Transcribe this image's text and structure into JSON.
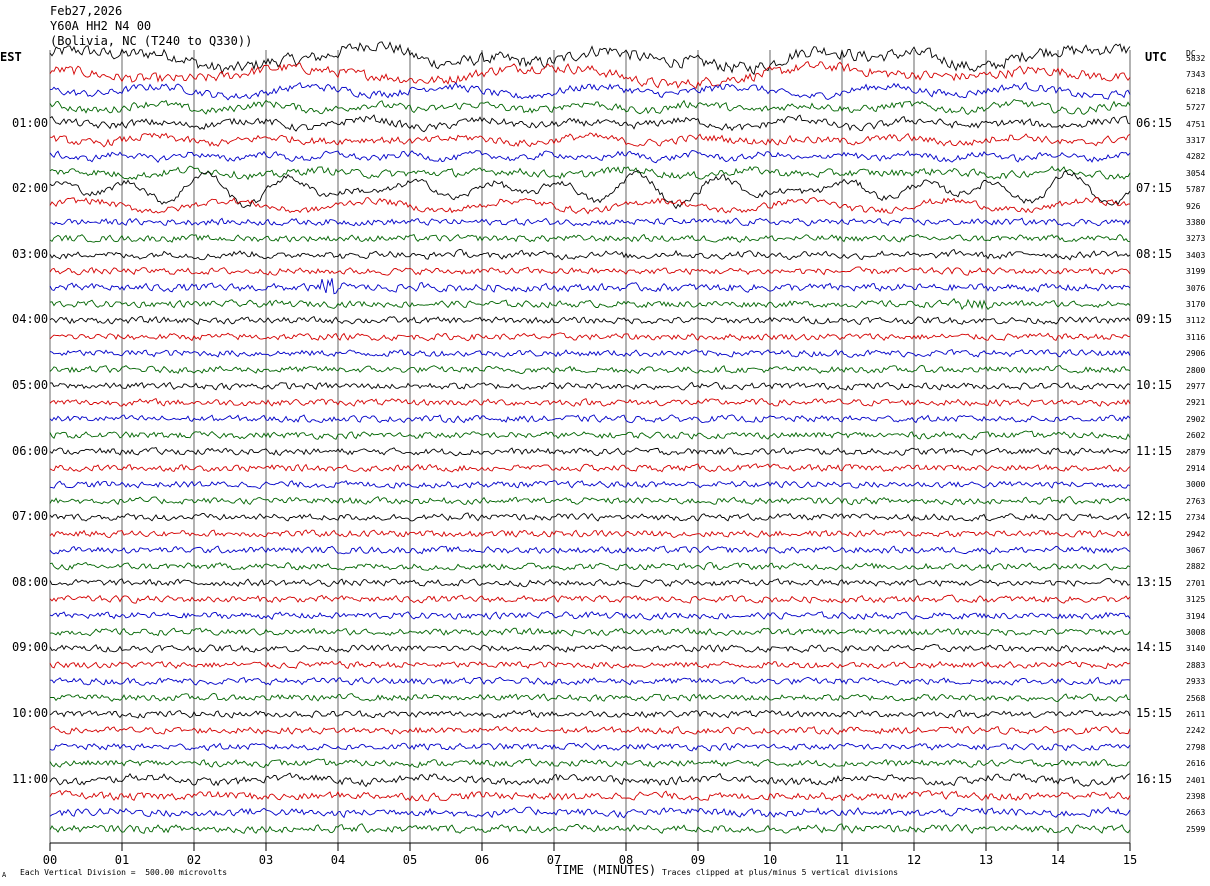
{
  "header": {
    "date": "Feb27,2026",
    "station": "Y60A HH2 N4 00",
    "location": "(Bolivia, NC (T240 to Q330))"
  },
  "axes": {
    "left_title": "EST",
    "right_title": "UTC",
    "dc_title": "DC",
    "xlabel": "TIME (MINUTES)"
  },
  "footer": {
    "scale": "Each Vertical Division =  500.00 microvolts",
    "clip": "Traces clipped at plus/minus 5 vertical divisions",
    "mark": "A"
  },
  "colors": {
    "cycle": [
      "#000000",
      "#d40000",
      "#0000c8",
      "#006400"
    ],
    "grid": "#000000"
  },
  "chart_data": {
    "type": "line",
    "x_ticks": [
      "00",
      "01",
      "02",
      "03",
      "04",
      "05",
      "06",
      "07",
      "08",
      "09",
      "10",
      "11",
      "12",
      "13",
      "14",
      "15"
    ],
    "xlim": [
      0,
      15
    ],
    "row_minutes": 15,
    "rows": 48,
    "left_time_labels": [
      "01:00",
      "02:00",
      "03:00",
      "04:00",
      "05:00",
      "06:00",
      "07:00",
      "08:00",
      "09:00",
      "10:00",
      "11:00"
    ],
    "right_time_labels": [
      "06:15",
      "07:15",
      "08:15",
      "09:15",
      "10:15",
      "11:15",
      "12:15",
      "13:15",
      "14:15",
      "15:15",
      "16:15"
    ],
    "label_every_rows": 4,
    "dc_offsets": [
      "5832",
      "7343",
      "6218",
      "5727",
      "4751",
      "3317",
      "4282",
      "3054",
      "5787",
      "926",
      "3380",
      "3273",
      "3403",
      "3199",
      "3076",
      "3170",
      "3112",
      "3116",
      "2906",
      "2800",
      "2977",
      "2921",
      "2902",
      "2602",
      "2879",
      "2914",
      "3000",
      "2763",
      "2734",
      "2942",
      "3067",
      "2882",
      "2701",
      "3125",
      "3194",
      "3008",
      "3140",
      "2883",
      "2933",
      "2568",
      "2611",
      "2242",
      "2798",
      "2616",
      "2401",
      "2398",
      "2663",
      "2599"
    ],
    "traces": [
      {
        "amp": 5.5,
        "waves": [
          [
            9,
            3.5,
            0.3
          ],
          [
            3,
            4,
            5.36
          ],
          [
            1.6,
            2,
            7.02
          ],
          [
            2,
            8,
            10.2
          ],
          [
            3.5,
            1.5,
            13.7
          ]
        ]
      },
      {
        "amp": 4.5,
        "waves": [
          [
            6,
            3.5,
            1.6
          ],
          [
            2.5,
            5,
            5.5
          ],
          [
            2,
            7,
            9.92
          ],
          [
            1,
            1.5,
            13.4
          ]
        ]
      },
      {
        "amp": 3.5,
        "waves": [
          [
            1.5,
            2,
            2.5
          ],
          [
            3,
            2,
            3.2
          ],
          [
            1.2,
            4,
            7
          ]
        ]
      },
      {
        "amp": 3.5,
        "waves": [
          [
            2,
            2,
            2.5
          ],
          [
            3,
            1.5,
            8
          ],
          [
            2,
            2,
            11.5
          ]
        ]
      },
      {
        "amp": 3.5,
        "waves": [
          [
            1.5,
            2,
            7.5
          ],
          [
            3,
            1.5,
            8.3
          ],
          [
            1.5,
            2,
            12
          ]
        ]
      },
      {
        "amp": 3.5,
        "waves": [
          [
            2,
            1.5,
            1.8
          ],
          [
            1.5,
            2,
            9.6
          ]
        ]
      },
      {
        "amp": 3,
        "waves": [
          [
            2.5,
            1,
            14.3
          ]
        ]
      },
      {
        "amp": 3.5,
        "waves": [
          [
            1.5,
            1.5,
            5.5
          ],
          [
            1.2,
            2,
            9
          ],
          [
            1.5,
            2,
            13.5
          ]
        ]
      },
      {
        "amp": 3,
        "waves": [
          [
            5,
            1.2,
            2.5
          ],
          [
            4,
            1.5,
            4.6
          ],
          [
            5,
            1.5,
            6.5
          ],
          [
            7,
            1,
            13.1
          ]
        ]
      },
      {
        "amp": 3,
        "waves": [
          [
            5,
            2,
            0.1
          ]
        ]
      },
      {
        "amp": 3,
        "waves": []
      },
      {
        "amp": 3,
        "waves": []
      },
      {
        "amp": 3,
        "waves": [
          [
            1.5,
            1,
            3.8
          ]
        ]
      },
      {
        "amp": 3,
        "waves": []
      },
      {
        "amp": 3.5,
        "waves": []
      },
      {
        "amp": 3,
        "waves": []
      },
      {
        "amp": 3,
        "waves": []
      },
      {
        "amp": 3,
        "waves": []
      },
      {
        "amp": 3,
        "waves": []
      },
      {
        "amp": 3,
        "waves": []
      },
      {
        "amp": 3,
        "waves": []
      },
      {
        "amp": 3,
        "waves": []
      },
      {
        "amp": 3,
        "waves": []
      },
      {
        "amp": 3,
        "waves": []
      },
      {
        "amp": 3,
        "waves": []
      },
      {
        "amp": 3,
        "waves": []
      },
      {
        "amp": 3,
        "waves": []
      },
      {
        "amp": 3,
        "waves": []
      },
      {
        "amp": 3,
        "waves": []
      },
      {
        "amp": 3,
        "waves": []
      },
      {
        "amp": 3,
        "waves": []
      },
      {
        "amp": 3,
        "waves": []
      },
      {
        "amp": 3,
        "waves": []
      },
      {
        "amp": 3,
        "waves": []
      },
      {
        "amp": 3,
        "waves": []
      },
      {
        "amp": 3,
        "waves": []
      },
      {
        "amp": 3,
        "waves": []
      },
      {
        "amp": 3,
        "waves": []
      },
      {
        "amp": 3,
        "waves": []
      },
      {
        "amp": 3,
        "waves": []
      },
      {
        "amp": 3,
        "waves": []
      },
      {
        "amp": 3,
        "waves": []
      },
      {
        "amp": 3,
        "waves": []
      },
      {
        "amp": 3,
        "waves": []
      },
      {
        "amp": 3.5,
        "waves": [
          [
            1.5,
            2,
            3.5
          ],
          [
            1.2,
            2,
            10
          ]
        ]
      },
      {
        "amp": 3.5,
        "waves": [
          [
            1.5,
            2,
            1.7
          ],
          [
            1.2,
            2,
            5.5
          ]
        ]
      },
      {
        "amp": 3.5,
        "waves": [
          [
            1.2,
            2,
            5
          ]
        ]
      },
      {
        "amp": 3.5,
        "waves": []
      }
    ],
    "events": [
      {
        "row": 14,
        "t": 3.6,
        "dur": 0.6,
        "amp": 8
      },
      {
        "row": 14,
        "t": 5.0,
        "dur": 0.3,
        "amp": 4
      },
      {
        "row": 15,
        "t": 12.4,
        "dur": 0.6,
        "amp": 5
      },
      {
        "row": 15,
        "t": 12.9,
        "dur": 0.2,
        "amp": 5
      }
    ]
  }
}
